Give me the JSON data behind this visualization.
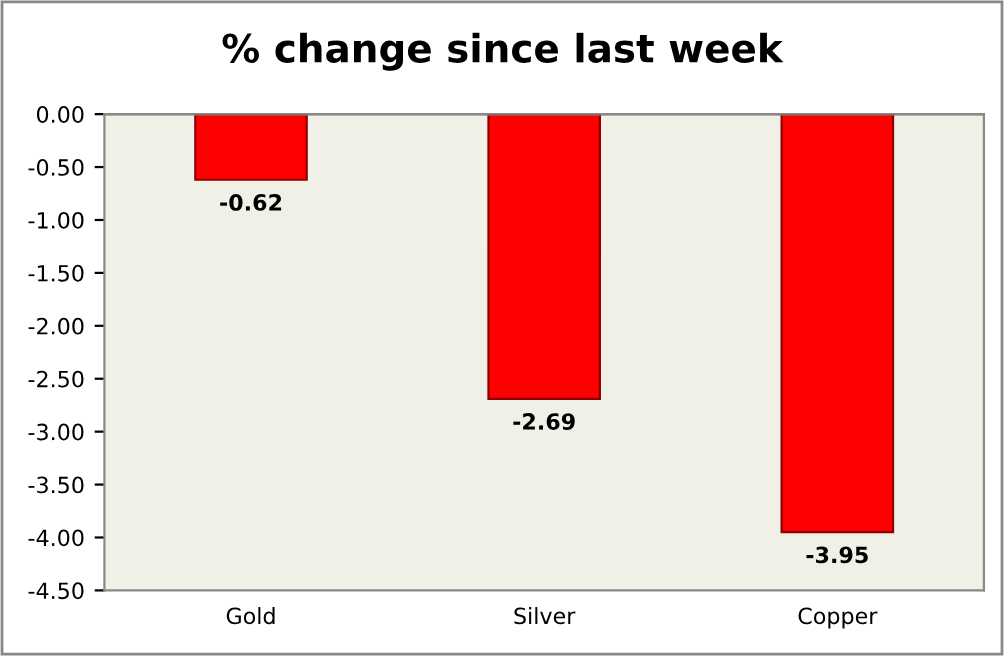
{
  "chart_data": {
    "type": "bar",
    "title": "% change since last week",
    "categories": [
      "Gold",
      "Silver",
      "Copper"
    ],
    "values": [
      -0.62,
      -2.69,
      -3.95
    ],
    "color": "#ff0000",
    "ylim": [
      -4.5,
      0
    ],
    "yticks": [
      {
        "value": 0,
        "label": "0.00"
      },
      {
        "value": -0.5,
        "label": "-0.50"
      },
      {
        "value": -1,
        "label": "-1.00"
      },
      {
        "value": -1.5,
        "label": "-1.50"
      },
      {
        "value": -2,
        "label": "-2.00"
      },
      {
        "value": -2.5,
        "label": "-2.50"
      },
      {
        "value": -3,
        "label": "-3.00"
      },
      {
        "value": -3.5,
        "label": "-3.50"
      },
      {
        "value": -4,
        "label": "-4.00"
      },
      {
        "value": -4.5,
        "label": "-4.50"
      }
    ],
    "data_labels": true,
    "grid": false,
    "legend": false
  }
}
